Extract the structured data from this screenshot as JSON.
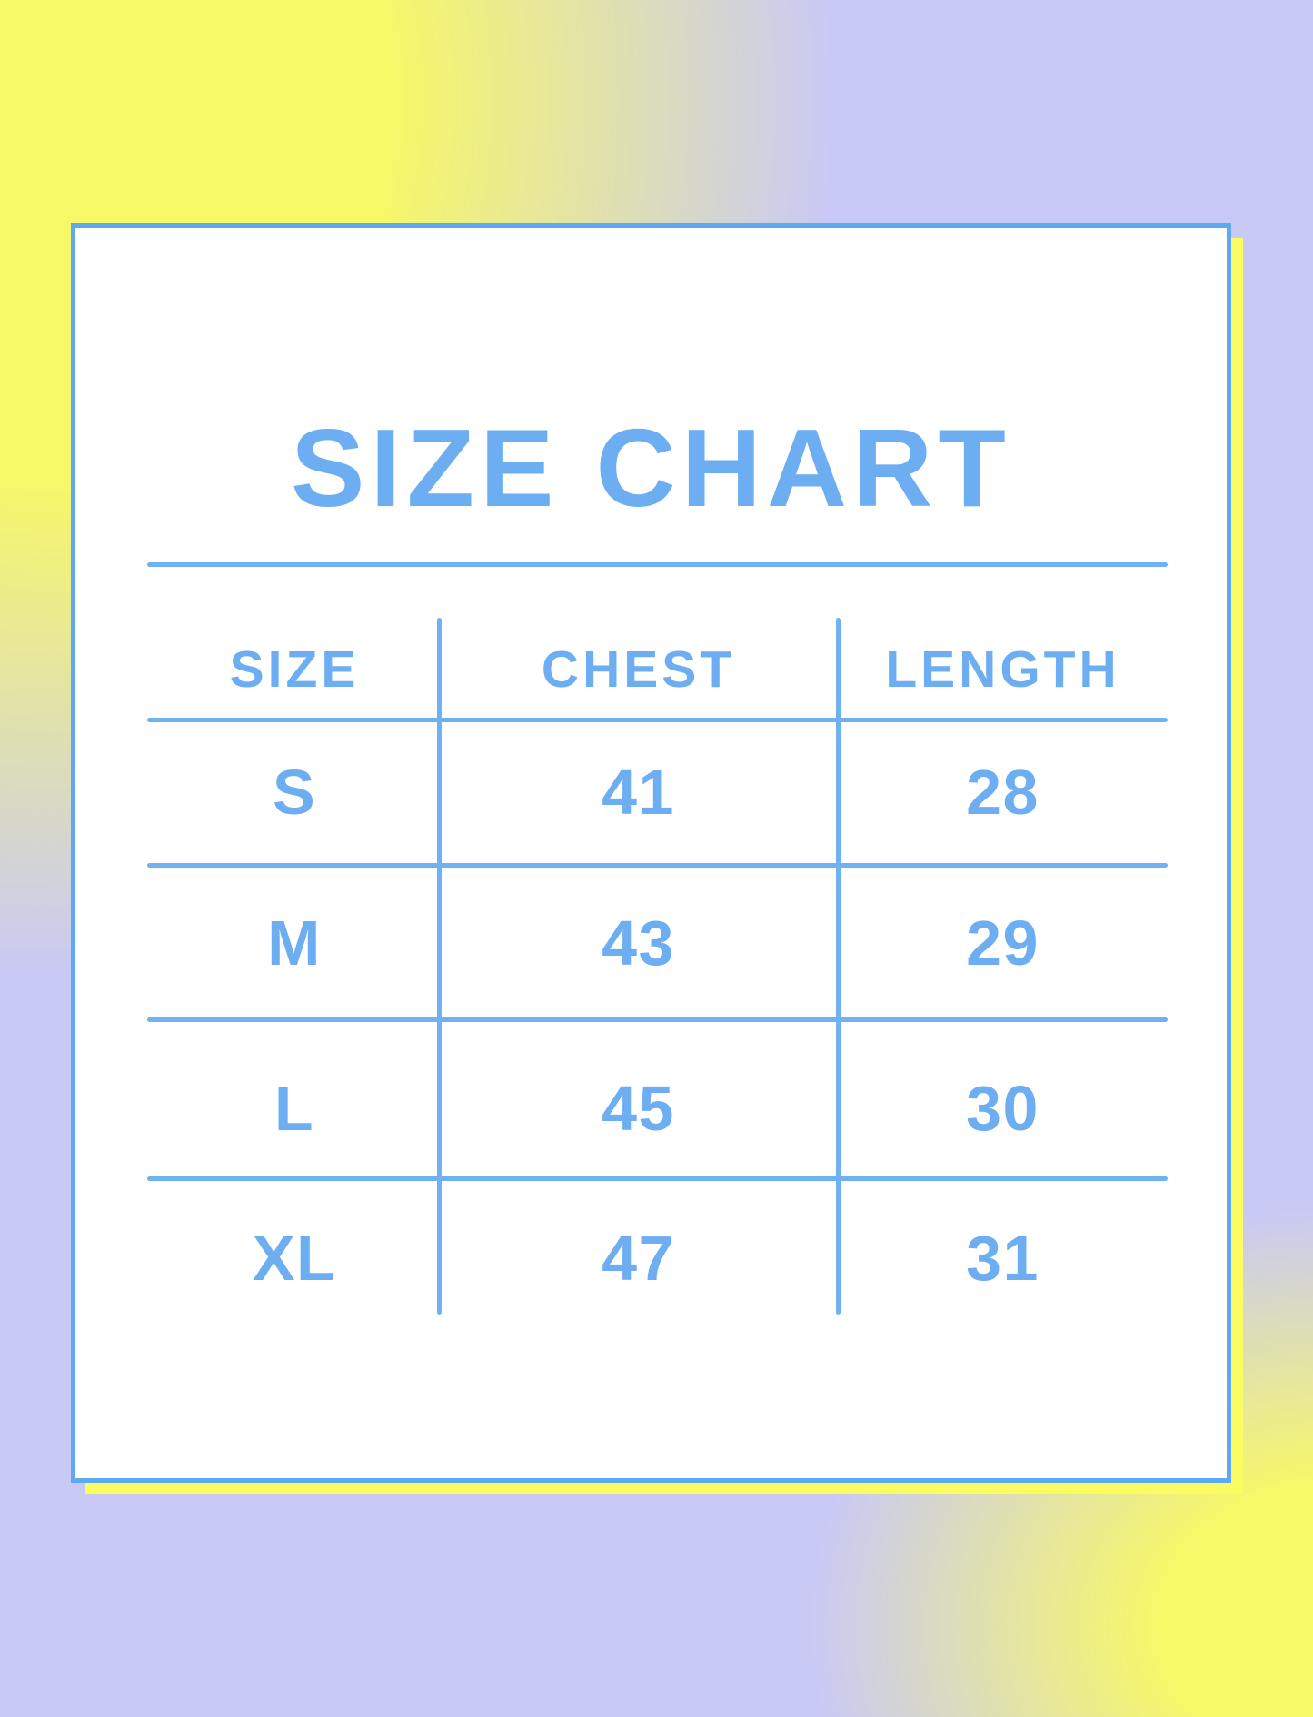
{
  "title": "SIZE CHART",
  "table": {
    "headers": {
      "size": "SIZE",
      "chest": "CHEST",
      "length": "LENGTH"
    },
    "rows": [
      {
        "size": "S",
        "chest": "41",
        "length": "28"
      },
      {
        "size": "M",
        "chest": "43",
        "length": "29"
      },
      {
        "size": "L",
        "chest": "45",
        "length": "30"
      },
      {
        "size": "XL",
        "chest": "47",
        "length": "31"
      }
    ]
  },
  "colors": {
    "accent_blue_text": "#6dadf2",
    "line_blue": "#70b1f3",
    "card_border_blue": "#5ea9ef",
    "card_background": "#ffffff",
    "accent_yellow_layer": "#fbfb62",
    "background_yellow": "#f7f868",
    "background_lavender": "#c9c9f6"
  },
  "chart_data": {
    "type": "table",
    "title": "SIZE CHART",
    "columns": [
      "SIZE",
      "CHEST",
      "LENGTH"
    ],
    "rows": [
      [
        "S",
        41,
        28
      ],
      [
        "M",
        43,
        29
      ],
      [
        "L",
        45,
        30
      ],
      [
        "XL",
        47,
        31
      ]
    ]
  }
}
